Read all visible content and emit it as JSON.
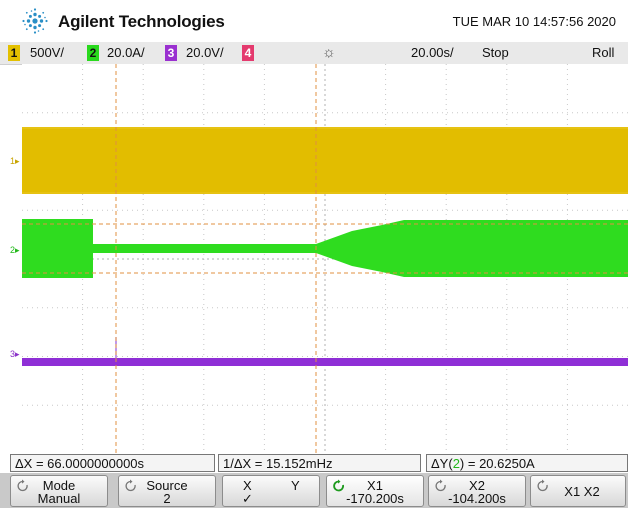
{
  "header": {
    "brand": "Agilent Technologies",
    "datetime": "TUE MAR 10 14:57:56 2020",
    "logo_icon": "agilent-spark-logo-icon"
  },
  "channels": [
    {
      "number": "1",
      "scale": "500V/",
      "color": "#e3c000"
    },
    {
      "number": "2",
      "scale": "20.0A/",
      "color": "#29d91d"
    },
    {
      "number": "3",
      "scale": "20.0V/",
      "color": "#9a30d0"
    },
    {
      "number": "4",
      "scale": "",
      "color": "#e43a6e"
    }
  ],
  "timebase": {
    "trigger_icon": "sun-trigger-icon",
    "time_per_div": "20.00s/",
    "run_state": "Stop",
    "mode": "Roll"
  },
  "traces": {
    "ch1_label": "1",
    "ch2_label": "2",
    "ch3_label": "3"
  },
  "measurements": {
    "delta_x": "ΔX = 66.0000000000s",
    "inv_delta_x": "1/ΔX = 15.152mHz",
    "delta_y_prefix": "ΔY(",
    "delta_y_channel": "2",
    "delta_y_suffix": ") = 20.6250A"
  },
  "softkeys": {
    "mode_label": "Mode",
    "mode_value": "Manual",
    "source_label": "Source",
    "source_value": "2",
    "x_label": "X",
    "y_label": "Y",
    "x_check": "✓",
    "x1_label": "X1",
    "x1_value": "-170.200s",
    "x2_label": "X2",
    "x2_value": "-104.200s",
    "x1x2_label": "X1 X2"
  }
}
